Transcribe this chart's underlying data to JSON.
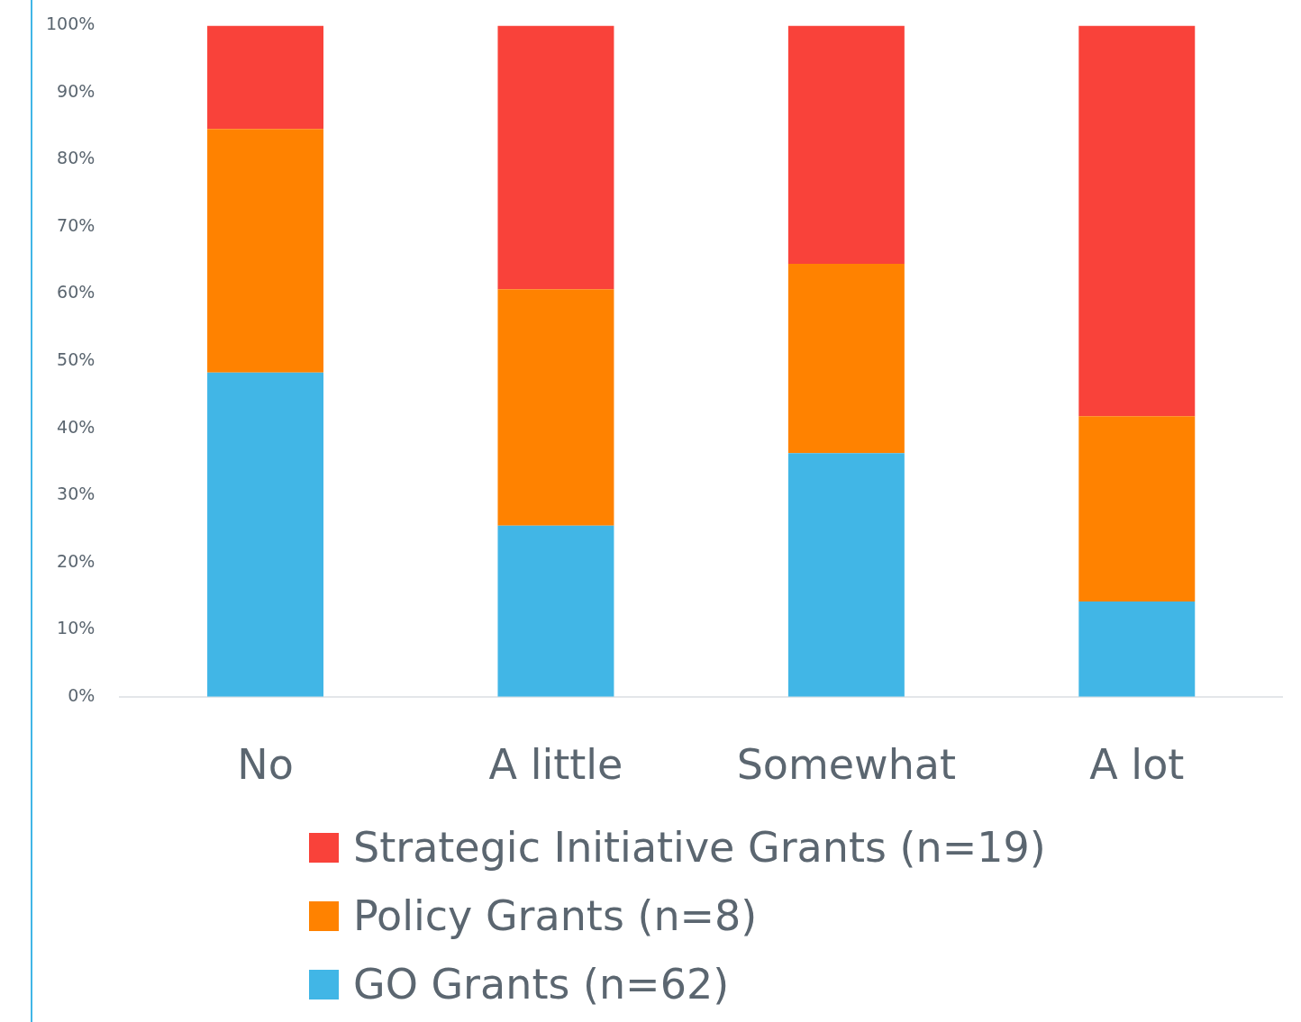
{
  "chart_data": {
    "type": "bar",
    "stacked": true,
    "categories": [
      "No",
      "A little",
      "Somewhat",
      "A lot"
    ],
    "series": [
      {
        "name": "GO Grants (n=62)",
        "color": "#41b6e6",
        "values": [
          48.3,
          25.5,
          36.3,
          14.2
        ]
      },
      {
        "name": "Policy Grants (n=8)",
        "color": "#ff8200",
        "values": [
          36.3,
          35.2,
          28.2,
          27.6
        ]
      },
      {
        "name": "Strategic Initiative Grants (n=19)",
        "color": "#f9423a",
        "values": [
          15.4,
          39.3,
          35.5,
          58.2
        ]
      }
    ],
    "ylim": [
      0,
      100
    ],
    "yticks": [
      {
        "value": 0,
        "label": "0%"
      },
      {
        "value": 10,
        "label": "10%"
      },
      {
        "value": 20,
        "label": "20%"
      },
      {
        "value": 30,
        "label": "30%"
      },
      {
        "value": 40,
        "label": "40%"
      },
      {
        "value": 50,
        "label": "50%"
      },
      {
        "value": 60,
        "label": "60%"
      },
      {
        "value": 70,
        "label": "70%"
      },
      {
        "value": 80,
        "label": "80%"
      },
      {
        "value": 90,
        "label": "90%"
      },
      {
        "value": 100,
        "label": "100%"
      }
    ],
    "grid": false,
    "legend": "bottom"
  }
}
